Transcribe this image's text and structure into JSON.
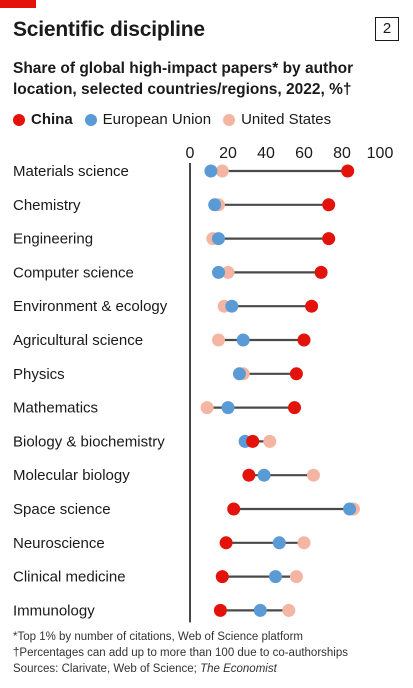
{
  "figure_number": "2",
  "title": "Scientific discipline",
  "subtitle": "Share of global high-impact papers* by author location, selected countries/regions, 2022, %†",
  "legend": [
    {
      "name": "China",
      "color": "#e3120b"
    },
    {
      "name": "European Union",
      "color": "#5b9bd5"
    },
    {
      "name": "United States",
      "color": "#f4b5a3"
    }
  ],
  "notes": {
    "note1": "*Top 1% by number of citations, Web of Science platform",
    "note2": "†Percentages can add up to more than 100 due to co-authorships",
    "sources_prefix": "Sources: Clarivate, Web of Science; ",
    "sources_italic": "The Economist"
  },
  "chart_data": {
    "type": "dot",
    "xlim": [
      0,
      100
    ],
    "xticks": [
      0,
      20,
      40,
      60,
      80,
      100
    ],
    "categories": [
      "Materials science",
      "Chemistry",
      "Engineering",
      "Computer science",
      "Environment & ecology",
      "Agricultural science",
      "Physics",
      "Mathematics",
      "Biology & biochemistry",
      "Molecular biology",
      "Space science",
      "Neuroscience",
      "Clinical medicine",
      "Immunology"
    ],
    "series": [
      {
        "name": "China",
        "color": "#e3120b",
        "values": [
          83,
          73,
          73,
          69,
          64,
          60,
          56,
          55,
          33,
          31,
          23,
          19,
          17,
          16
        ]
      },
      {
        "name": "European Union",
        "color": "#5b9bd5",
        "values": [
          11,
          13,
          15,
          15,
          22,
          28,
          26,
          20,
          29,
          39,
          84,
          47,
          45,
          37
        ]
      },
      {
        "name": "United States",
        "color": "#f4b5a3",
        "values": [
          17,
          15,
          12,
          20,
          18,
          15,
          28,
          9,
          42,
          65,
          86,
          60,
          56,
          52
        ]
      }
    ]
  }
}
